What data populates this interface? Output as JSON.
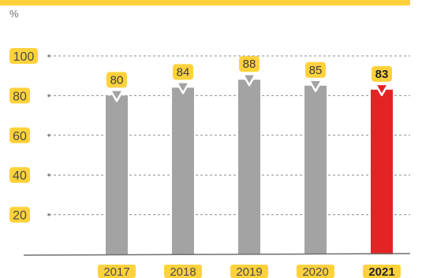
{
  "chart_data": {
    "type": "bar",
    "unit_label": "%",
    "categories": [
      "2017",
      "2018",
      "2019",
      "2020",
      "2021"
    ],
    "values": [
      80,
      84,
      88,
      85,
      83
    ],
    "highlight_index": 4,
    "yticks": [
      20,
      40,
      60,
      80,
      100
    ],
    "ylim": [
      0,
      100
    ],
    "grid": true,
    "colors": {
      "bar": "#a3a3a3",
      "highlight_bar": "#e42325",
      "label_bg": "#ffd23c",
      "title_band": "#ffd23c",
      "gridline": "#8c8c8c",
      "axis": "#6e6e6e"
    }
  }
}
